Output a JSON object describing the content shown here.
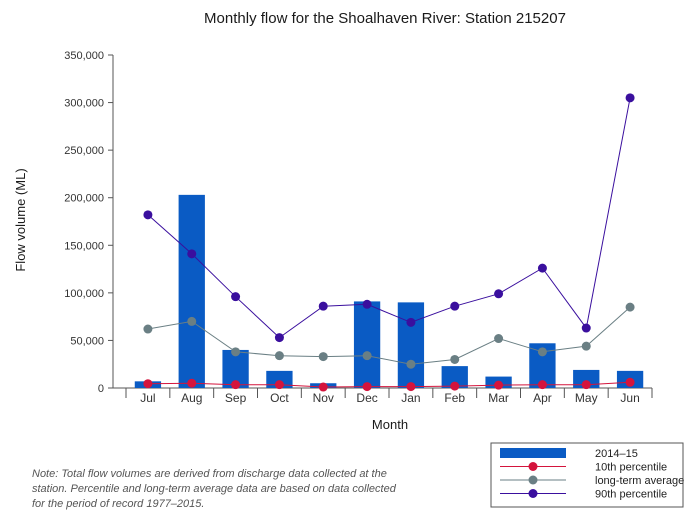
{
  "chart_data": {
    "type": "bar",
    "title": "Monthly flow for the Shoalhaven River: Station 215207",
    "xlabel": "Month",
    "ylabel": "Flow volume (ML)",
    "ylim": [
      0,
      350000
    ],
    "yticks": [
      0,
      50000,
      100000,
      150000,
      200000,
      250000,
      300000,
      350000
    ],
    "ytick_labels": [
      "0",
      "50,000",
      "100,000",
      "150,000",
      "200,000",
      "250,000",
      "300,000",
      "350,000"
    ],
    "categories": [
      "Jul",
      "Aug",
      "Sep",
      "Oct",
      "Nov",
      "Dec",
      "Jan",
      "Feb",
      "Mar",
      "Apr",
      "May",
      "Jun"
    ],
    "grid": false,
    "legend_position": "bottom-right",
    "series": [
      {
        "name": "2014–15",
        "kind": "bar",
        "color": "#0a5bc4",
        "values": [
          7000,
          203000,
          40000,
          18000,
          5000,
          91000,
          90000,
          23000,
          12000,
          47000,
          19000,
          18000
        ]
      },
      {
        "name": "10th percentile",
        "kind": "line",
        "color": "#d4143c",
        "line_color": "#d4143c",
        "values": [
          4500,
          5000,
          3500,
          3500,
          1000,
          1500,
          1500,
          2000,
          3000,
          3500,
          3500,
          6000
        ]
      },
      {
        "name": "long-term average",
        "kind": "line",
        "color": "#6a7f84",
        "line_color": "#6a7f84",
        "values": [
          62000,
          70000,
          38000,
          34000,
          33000,
          34000,
          25000,
          30000,
          52000,
          38000,
          44000,
          85000
        ]
      },
      {
        "name": "90th percentile",
        "kind": "line",
        "color": "#3a0f9e",
        "line_color": "#3a0f9e",
        "values": [
          182000,
          141000,
          96000,
          53000,
          86000,
          88000,
          69000,
          86000,
          99000,
          126000,
          63000,
          305000
        ]
      }
    ]
  },
  "note": "Note: Total flow volumes are derived from discharge data collected at the station. Percentile and long-term average data are based on data collected for the period of record 1977–2015."
}
